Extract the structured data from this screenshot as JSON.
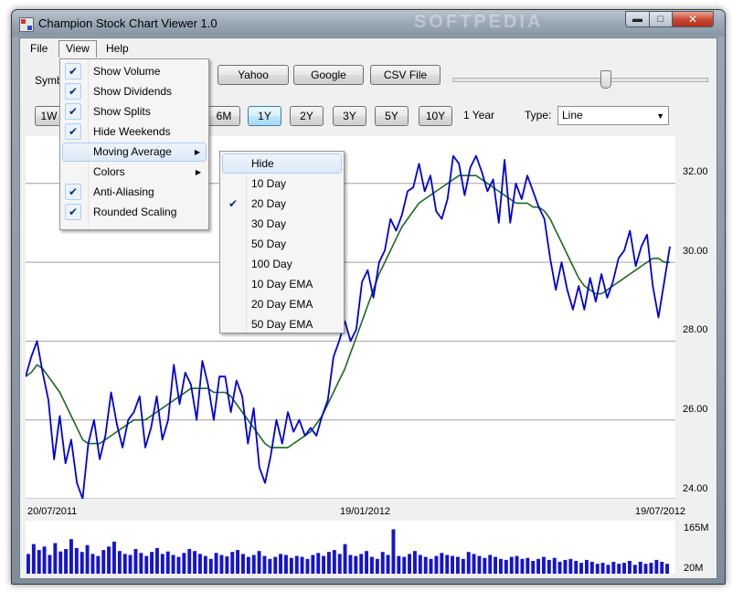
{
  "window": {
    "title": "Champion Stock Chart Viewer 1.0",
    "watermark": "SOFTPEDIA"
  },
  "menubar": {
    "file": "File",
    "view": "View",
    "help": "Help"
  },
  "toolbar": {
    "symbol_label": "Symbo",
    "yahoo": "Yahoo",
    "google": "Google",
    "csv": "CSV File",
    "slider_fraction": 0.6
  },
  "ranges": {
    "buttons": [
      "1W",
      "6M",
      "1Y",
      "2Y",
      "3Y",
      "5Y",
      "10Y"
    ],
    "selected": "1Y",
    "current_label": "1 Year"
  },
  "type": {
    "label": "Type:",
    "value": "Line"
  },
  "view_menu": {
    "items": [
      {
        "label": "Show Volume",
        "checked": true
      },
      {
        "label": "Show Dividends",
        "checked": true
      },
      {
        "label": "Show Splits",
        "checked": true
      },
      {
        "label": "Hide Weekends",
        "checked": true
      },
      {
        "label": "Moving Average",
        "checked": false,
        "submenu": true,
        "highlighted": true
      },
      {
        "label": "Colors",
        "checked": false,
        "submenu": true
      },
      {
        "label": "Anti-Aliasing",
        "checked": true
      },
      {
        "label": "Rounded Scaling",
        "checked": true
      }
    ]
  },
  "moving_average_menu": {
    "items": [
      {
        "label": "Hide",
        "checked": false,
        "highlighted": true
      },
      {
        "label": "10 Day",
        "checked": false
      },
      {
        "label": "20 Day",
        "checked": true
      },
      {
        "label": "30 Day",
        "checked": false
      },
      {
        "label": "50 Day",
        "checked": false
      },
      {
        "label": "100 Day",
        "checked": false
      },
      {
        "label": "10 Day EMA",
        "checked": false
      },
      {
        "label": "20 Day EMA",
        "checked": false
      },
      {
        "label": "50 Day EMA",
        "checked": false
      }
    ]
  },
  "icons": {
    "check": "check-icon",
    "submenu": "submenu-arrow-icon",
    "dropdown": "chevron-down-icon"
  },
  "colors": {
    "price_line": "#0000d8",
    "moving_average": "#1c6a1c",
    "volume_bars": "#1414d0",
    "grid": "#a0a0a0"
  },
  "chart_data": {
    "type": "line",
    "y_ticks": [
      "32.00",
      "30.00",
      "28.00",
      "26.00",
      "24.00"
    ],
    "ylim": [
      24,
      33.2
    ],
    "x_labels": [
      "20/07/2011",
      "19/01/2012",
      "19/07/2012"
    ],
    "series": [
      {
        "values": [
          27.1,
          27.6,
          28.0,
          27.2,
          26.5,
          25.0,
          26.1,
          24.9,
          25.5,
          24.4,
          24.0,
          25.4,
          26.0,
          25.0,
          25.6,
          26.7,
          25.9,
          25.3,
          26.0,
          26.2,
          26.6,
          25.3,
          25.8,
          26.6,
          25.5,
          26.0,
          27.4,
          26.4,
          27.2,
          26.9,
          26.0,
          27.5,
          26.9,
          26.0,
          27.1,
          27.1,
          26.2,
          27.0,
          26.6,
          25.4,
          26.3,
          24.8,
          24.4,
          25.1,
          26.0,
          25.4,
          26.2,
          25.7,
          26.0,
          25.6,
          25.8,
          25.6,
          26.1,
          26.5,
          27.6,
          28.0,
          28.5,
          28.0,
          28.3,
          29.5,
          29.8,
          29.1,
          30.0,
          30.3,
          31.1,
          30.8,
          31.2,
          31.8,
          31.9,
          32.5,
          31.8,
          32.2,
          31.3,
          31.1,
          31.6,
          32.7,
          32.5,
          31.7,
          32.4,
          32.7,
          32.3,
          31.8,
          32.1,
          31.0,
          32.6,
          31.0,
          32.0,
          31.6,
          32.2,
          31.8,
          31.4,
          31.1,
          30.1,
          29.3,
          30.0,
          29.3,
          28.8,
          29.4,
          28.8,
          29.6,
          29.0,
          29.7,
          29.1,
          29.5,
          30.1,
          30.3,
          30.8,
          29.9,
          30.4,
          30.7,
          29.4,
          28.6,
          29.5,
          30.4
        ],
        "moving_average": [
          27.1,
          27.2,
          27.4,
          27.3,
          27.1,
          26.9,
          26.7,
          26.4,
          26.1,
          25.8,
          25.5,
          25.4,
          25.4,
          25.4,
          25.5,
          25.6,
          25.7,
          25.8,
          25.9,
          26.0,
          26.0,
          26.0,
          26.1,
          26.2,
          26.3,
          26.4,
          26.5,
          26.6,
          26.7,
          26.8,
          26.8,
          26.8,
          26.8,
          26.7,
          26.7,
          26.7,
          26.6,
          26.4,
          26.2,
          26.0,
          25.8,
          25.6,
          25.4,
          25.3,
          25.3,
          25.3,
          25.3,
          25.4,
          25.5,
          25.6,
          25.7,
          25.9,
          26.1,
          26.4,
          26.7,
          27.0,
          27.3,
          27.7,
          28.1,
          28.5,
          28.9,
          29.3,
          29.7,
          30.0,
          30.3,
          30.6,
          30.9,
          31.1,
          31.3,
          31.5,
          31.6,
          31.7,
          31.8,
          31.9,
          32.0,
          32.1,
          32.2,
          32.2,
          32.2,
          32.2,
          32.1,
          32.0,
          31.9,
          31.8,
          31.7,
          31.6,
          31.5,
          31.5,
          31.5,
          31.4,
          31.4,
          31.3,
          31.1,
          30.8,
          30.5,
          30.2,
          29.9,
          29.6,
          29.4,
          29.3,
          29.2,
          29.2,
          29.3,
          29.4,
          29.5,
          29.6,
          29.7,
          29.8,
          29.9,
          30.0,
          30.1,
          30.1,
          30.0,
          30.0
        ]
      }
    ],
    "volume": {
      "labels": [
        "165M",
        "20M"
      ],
      "values": [
        40,
        60,
        48,
        55,
        38,
        62,
        45,
        50,
        70,
        52,
        44,
        58,
        40,
        36,
        48,
        55,
        65,
        46,
        40,
        38,
        50,
        42,
        36,
        44,
        52,
        40,
        45,
        38,
        34,
        42,
        50,
        46,
        40,
        36,
        30,
        42,
        38,
        35,
        44,
        48,
        40,
        34,
        38,
        46,
        36,
        30,
        34,
        40,
        38,
        32,
        36,
        34,
        30,
        38,
        42,
        36,
        44,
        48,
        40,
        60,
        38,
        36,
        40,
        46,
        34,
        30,
        44,
        38,
        90,
        36,
        34,
        40,
        46,
        38,
        34,
        30,
        36,
        42,
        38,
        36,
        34,
        30,
        44,
        40,
        36,
        32,
        38,
        34,
        30,
        28,
        34,
        36,
        30,
        32,
        26,
        30,
        34,
        28,
        32,
        24,
        28,
        30,
        26,
        22,
        28,
        24,
        20,
        22,
        18,
        24,
        20,
        22,
        26,
        18,
        24,
        20,
        22,
        28,
        24,
        20
      ],
      "max": 100
    }
  }
}
